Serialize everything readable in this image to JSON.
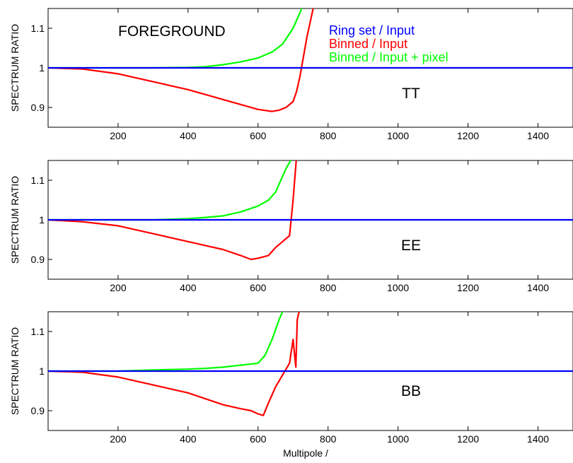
{
  "figure": {
    "xlabel": "Multipole /",
    "legend_placement": "top-right inside first panel"
  },
  "chart_data": [
    {
      "type": "line",
      "panel_label": "TT",
      "title": "FOREGROUND",
      "xlabel": "",
      "ylabel": "SPECTRUM RATIO",
      "xlim": [
        0,
        1500
      ],
      "ylim": [
        0.85,
        1.15
      ],
      "xticks": [
        200,
        400,
        600,
        800,
        1000,
        1200,
        1400
      ],
      "yticks": [
        0.9,
        1,
        1.1
      ],
      "ytick_labels": [
        "0.9",
        "1",
        "1.1"
      ],
      "series": [
        {
          "name": "Ring set / Input",
          "color": "#0000ff",
          "x": [
            0,
            1500
          ],
          "y": [
            1.0,
            1.0
          ]
        },
        {
          "name": "Binned / Input",
          "color": "#ff0000",
          "x": [
            0,
            100,
            200,
            300,
            400,
            500,
            560,
            600,
            640,
            660,
            680,
            700,
            710,
            720,
            740,
            760
          ],
          "y": [
            1.0,
            0.997,
            0.985,
            0.965,
            0.945,
            0.92,
            0.905,
            0.895,
            0.89,
            0.893,
            0.9,
            0.915,
            0.94,
            0.98,
            1.08,
            1.16
          ]
        },
        {
          "name": "Binned / Input + pixel",
          "color": "#00ff00",
          "x": [
            0,
            200,
            300,
            400,
            450,
            500,
            550,
            600,
            640,
            670,
            700,
            715,
            730
          ],
          "y": [
            1.0,
            1.0,
            1.0,
            1.001,
            1.003,
            1.008,
            1.015,
            1.025,
            1.04,
            1.06,
            1.1,
            1.13,
            1.16
          ]
        }
      ]
    },
    {
      "type": "line",
      "panel_label": "EE",
      "title": "",
      "xlabel": "",
      "ylabel": "SPECTRUM RATIO",
      "xlim": [
        0,
        1500
      ],
      "ylim": [
        0.85,
        1.15
      ],
      "xticks": [
        200,
        400,
        600,
        800,
        1000,
        1200,
        1400
      ],
      "yticks": [
        0.9,
        1,
        1.1
      ],
      "ytick_labels": [
        "0.9",
        "1",
        "1.1"
      ],
      "series": [
        {
          "name": "Ring set / Input",
          "color": "#0000ff",
          "x": [
            0,
            1500
          ],
          "y": [
            1.0,
            1.0
          ]
        },
        {
          "name": "Binned / Input",
          "color": "#ff0000",
          "x": [
            0,
            100,
            200,
            300,
            400,
            450,
            500,
            550,
            580,
            600,
            630,
            650,
            670,
            690,
            700,
            710
          ],
          "y": [
            1.0,
            0.995,
            0.985,
            0.965,
            0.945,
            0.935,
            0.925,
            0.91,
            0.9,
            0.903,
            0.91,
            0.93,
            0.945,
            0.96,
            1.05,
            1.16
          ]
        },
        {
          "name": "Binned / Input + pixel",
          "color": "#00ff00",
          "x": [
            0,
            200,
            300,
            400,
            450,
            500,
            550,
            600,
            630,
            650,
            665,
            680,
            700
          ],
          "y": [
            1.0,
            1.0,
            1.0,
            1.003,
            1.006,
            1.01,
            1.02,
            1.035,
            1.05,
            1.07,
            1.1,
            1.13,
            1.16
          ]
        }
      ]
    },
    {
      "type": "line",
      "panel_label": "BB",
      "title": "",
      "xlabel": "Multipole /",
      "ylabel": "SPECTRUM RATIO",
      "xlim": [
        0,
        1500
      ],
      "ylim": [
        0.85,
        1.15
      ],
      "xticks": [
        200,
        400,
        600,
        800,
        1000,
        1200,
        1400
      ],
      "yticks": [
        0.9,
        1,
        1.1
      ],
      "ytick_labels": [
        "0.9",
        "1",
        "1.1"
      ],
      "series": [
        {
          "name": "Ring set / Input",
          "color": "#0000ff",
          "x": [
            0,
            1500
          ],
          "y": [
            1.0,
            1.0
          ]
        },
        {
          "name": "Binned / Input",
          "color": "#ff0000",
          "x": [
            0,
            100,
            200,
            300,
            400,
            450,
            500,
            550,
            580,
            600,
            615,
            630,
            650,
            670,
            690,
            700,
            708,
            712,
            720
          ],
          "y": [
            1.0,
            0.997,
            0.985,
            0.965,
            0.945,
            0.93,
            0.915,
            0.905,
            0.9,
            0.892,
            0.888,
            0.92,
            0.96,
            0.99,
            1.02,
            1.08,
            1.01,
            1.13,
            1.16
          ]
        },
        {
          "name": "Binned / Input + pixel",
          "color": "#00ff00",
          "x": [
            0,
            200,
            300,
            400,
            450,
            500,
            550,
            600,
            620,
            640,
            660,
            675
          ],
          "y": [
            1.0,
            1.0,
            1.003,
            1.005,
            1.007,
            1.01,
            1.015,
            1.02,
            1.04,
            1.08,
            1.13,
            1.16
          ]
        }
      ]
    }
  ]
}
